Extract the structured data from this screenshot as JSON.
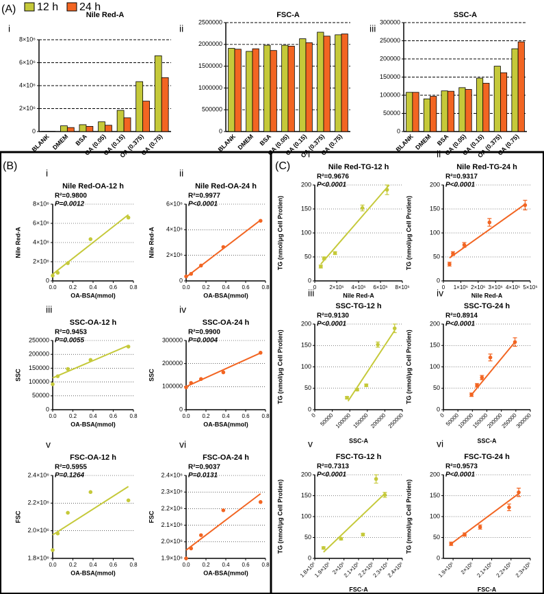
{
  "sections": [
    "(A)",
    "(B)",
    "(C)"
  ],
  "chart_data": [
    {
      "type": "bar",
      "panel": "i",
      "title": "Nile Red-A",
      "categories": [
        "BLANK",
        "DMEM",
        "BSA",
        "OA (0.05)",
        "OA (0.15)",
        "OA (0.375)",
        "OA (0.75)"
      ],
      "series": [
        {
          "name": "12 h",
          "color": "#c5c93a",
          "values": [
            20000,
            500000,
            600000,
            850000,
            1850000,
            4350000,
            6600000
          ]
        },
        {
          "name": "24 h",
          "color": "#f26522",
          "values": [
            20000,
            350000,
            450000,
            550000,
            1200000,
            2650000,
            4700000
          ]
        }
      ],
      "ylim": [
        0,
        8000000
      ],
      "yticks": [
        0,
        {
          "value": 2000000,
          "label": "2×10⁶"
        },
        {
          "value": 4000000,
          "label": "4×10⁶"
        },
        {
          "value": 6000000,
          "label": "6×10⁶"
        },
        {
          "value": 8000000,
          "label": "8×10⁶"
        }
      ],
      "grid": true
    },
    {
      "type": "bar",
      "panel": "ii",
      "title": "FSC-A",
      "categories": [
        "BLANK",
        "DMEM",
        "BSA",
        "OA (0.05)",
        "OA (0.15)",
        "OA (0.375)",
        "OA (0.75)"
      ],
      "series": [
        {
          "name": "12 h",
          "color": "#c5c93a",
          "values": [
            1910000,
            1840000,
            1980000,
            1980000,
            2130000,
            2280000,
            2220000
          ]
        },
        {
          "name": "24 h",
          "color": "#f26522",
          "values": [
            1890000,
            1900000,
            1860000,
            1960000,
            2040000,
            2190000,
            2240000
          ]
        }
      ],
      "ylim": [
        0,
        2500000
      ],
      "yticks": [
        0,
        500000,
        1000000,
        1500000,
        2000000,
        2500000
      ],
      "grid": true
    },
    {
      "type": "bar",
      "panel": "iii",
      "title": "SSC-A",
      "categories": [
        "BLANK",
        "DMEM",
        "BSA",
        "OA (0.05)",
        "OA (0.15)",
        "OA (0.375)",
        "OA (0.75)"
      ],
      "series": [
        {
          "name": "12 h",
          "color": "#c5c93a",
          "values": [
            108000,
            90000,
            112000,
            121000,
            147000,
            180000,
            228000
          ]
        },
        {
          "name": "24 h",
          "color": "#f26522",
          "values": [
            108000,
            97000,
            111000,
            116000,
            133000,
            162000,
            247000
          ]
        }
      ],
      "ylim": [
        0,
        300000
      ],
      "yticks": [
        0,
        50000,
        100000,
        150000,
        200000,
        250000,
        300000
      ],
      "grid": true
    },
    {
      "type": "scatter",
      "panel": "i",
      "title": "Nile Red-OA-12 h",
      "color": "#c5c93a",
      "annotations": [
        "R²=0.9800",
        "P=0.0012"
      ],
      "xlabel": "OA-BSA(mmol)",
      "ylabel": "Nile Red-A",
      "x": [
        0,
        0.05,
        0.15,
        0.375,
        0.75
      ],
      "y": [
        550000,
        850000,
        1850000,
        4350000,
        6600000
      ],
      "fit": {
        "x": [
          0,
          0.75
        ],
        "y": [
          700000,
          6900000
        ]
      },
      "xlim": [
        0,
        0.8
      ],
      "xticks": [
        {
          "value": 0,
          "label": "0.0"
        },
        0.2,
        0.4,
        0.6,
        0.8
      ],
      "ylim": [
        0,
        8000000
      ],
      "yticks": [
        0,
        {
          "value": 2000000,
          "label": "2×10⁶"
        },
        {
          "value": 4000000,
          "label": "4×10⁶"
        },
        {
          "value": 6000000,
          "label": "6×10⁶"
        },
        {
          "value": 8000000,
          "label": "8×10⁶"
        }
      ],
      "grid": true
    },
    {
      "type": "scatter",
      "panel": "ii",
      "title": "Nile Red-OA-24 h",
      "color": "#f26522",
      "annotations": [
        "R²=0.9977",
        "P<0.0001"
      ],
      "xlabel": "OA-BSA(mmol)",
      "ylabel": "Nile Red-A",
      "x": [
        0,
        0.05,
        0.15,
        0.375,
        0.75
      ],
      "y": [
        350000,
        550000,
        1200000,
        2650000,
        4700000
      ],
      "fit": {
        "x": [
          0,
          0.75
        ],
        "y": [
          300000,
          4750000
        ]
      },
      "xlim": [
        0,
        0.8
      ],
      "xticks": [
        {
          "value": 0,
          "label": "0.0"
        },
        0.2,
        0.4,
        0.6,
        0.8
      ],
      "ylim": [
        0,
        6000000
      ],
      "yticks": [
        0,
        {
          "value": 2000000,
          "label": "2×10⁶"
        },
        {
          "value": 4000000,
          "label": "4×10⁶"
        },
        {
          "value": 6000000,
          "label": "6×10⁶"
        }
      ],
      "grid": true
    },
    {
      "type": "scatter",
      "panel": "iii",
      "title": "SSC-OA-12 h",
      "color": "#c5c93a",
      "annotations": [
        "R²=0.9453",
        "P=0.0055"
      ],
      "xlabel": "OA-BSA(mmol)",
      "ylabel": "SSC",
      "x": [
        0,
        0.05,
        0.15,
        0.375,
        0.75
      ],
      "y": [
        92000,
        121000,
        147000,
        180000,
        228000
      ],
      "fit": {
        "x": [
          0,
          0.75
        ],
        "y": [
          115000,
          232000
        ]
      },
      "xlim": [
        0,
        0.8
      ],
      "xticks": [
        {
          "value": 0,
          "label": "0.0"
        },
        0.2,
        0.4,
        0.6,
        0.8
      ],
      "ylim": [
        0,
        250000
      ],
      "yticks": [
        0,
        50000,
        100000,
        150000,
        200000,
        250000
      ],
      "grid": true
    },
    {
      "type": "scatter",
      "panel": "iv",
      "title": "SSC-OA-24 h",
      "color": "#f26522",
      "annotations": [
        "R²=0.9900",
        "P=0.0004"
      ],
      "xlabel": "OA-BSA(mmol)",
      "ylabel": "SSC",
      "x": [
        0,
        0.05,
        0.15,
        0.375,
        0.75
      ],
      "y": [
        97000,
        116000,
        133000,
        162000,
        247000
      ],
      "fit": {
        "x": [
          0,
          0.75
        ],
        "y": [
          100000,
          246000
        ]
      },
      "xlim": [
        0,
        0.8
      ],
      "xticks": [
        {
          "value": 0,
          "label": "0.0"
        },
        0.2,
        0.4,
        0.6,
        0.8
      ],
      "ylim": [
        0,
        300000
      ],
      "yticks": [
        0,
        100000,
        200000,
        300000
      ],
      "grid": true
    },
    {
      "type": "scatter",
      "panel": "v",
      "title": "FSC-OA-12 h",
      "color": "#c5c93a",
      "annotations": [
        "R²=0.5955",
        "P=0.1264"
      ],
      "xlabel": "OA-BSA(mmol)",
      "ylabel": "FSC",
      "x": [
        0,
        0.05,
        0.15,
        0.375,
        0.75
      ],
      "y": [
        1860000,
        1980000,
        2130000,
        2280000,
        2220000
      ],
      "fit": {
        "x": [
          0,
          0.75
        ],
        "y": [
          1970000,
          2320000
        ]
      },
      "xlim": [
        0,
        0.8
      ],
      "xticks": [
        {
          "value": 0,
          "label": "0.0"
        },
        0.2,
        0.4,
        0.6,
        0.8
      ],
      "ylim": [
        1800000,
        2400000
      ],
      "yticks": [
        {
          "value": 1800000,
          "label": "1.8×10⁶"
        },
        {
          "value": 2000000,
          "label": "2.0×10⁶"
        },
        {
          "value": 2200000,
          "label": "2.2×10⁶"
        },
        {
          "value": 2400000,
          "label": "2.4×10⁶"
        }
      ],
      "grid": true
    },
    {
      "type": "scatter",
      "panel": "vi",
      "title": "FSC-OA-24 h",
      "color": "#f26522",
      "annotations": [
        "R²=0.9037",
        "P=0.0131"
      ],
      "xlabel": "OA-BSA(mmol)",
      "ylabel": "FSC",
      "x": [
        0,
        0.05,
        0.15,
        0.375,
        0.75
      ],
      "y": [
        1900000,
        1960000,
        2040000,
        2190000,
        2240000
      ],
      "fit": {
        "x": [
          0,
          0.75
        ],
        "y": [
          1950000,
          2290000
        ]
      },
      "xlim": [
        0,
        0.8
      ],
      "xticks": [
        {
          "value": 0,
          "label": "0.0"
        },
        0.2,
        0.4,
        0.6,
        0.8
      ],
      "ylim": [
        1900000,
        2400000
      ],
      "yticks": [
        {
          "value": 1900000,
          "label": "1.9×10⁶"
        },
        {
          "value": 2000000,
          "label": "2.0×10⁶"
        },
        {
          "value": 2100000,
          "label": "2.1×10⁶"
        },
        {
          "value": 2200000,
          "label": "2.2×10⁶"
        },
        {
          "value": 2300000,
          "label": "2.3×10⁶"
        },
        {
          "value": 2400000,
          "label": "2.4×10⁶"
        }
      ],
      "grid": true
    },
    {
      "type": "scatter",
      "panel": "i",
      "title": "Nile Red-TG-12 h",
      "color": "#c5c93a",
      "annotations": [
        "R²=0.9676",
        "P<0.0001"
      ],
      "xlabel": "Nile Red-A",
      "ylabel": "TG (nmol/μg Cell Protien)",
      "x": [
        550000,
        850000,
        1850000,
        4350000,
        6600000
      ],
      "y": [
        30,
        47,
        58,
        152,
        190
      ],
      "errors": [
        3,
        3,
        3,
        6,
        10
      ],
      "fit": {
        "x": [
          550000,
          6800000
        ],
        "y": [
          35,
          200
        ]
      },
      "xlim": [
        0,
        8000000
      ],
      "xticks": [
        0,
        {
          "value": 2000000,
          "label": "2×10⁶"
        },
        {
          "value": 4000000,
          "label": "4×10⁶"
        },
        {
          "value": 6000000,
          "label": "6×10⁶"
        },
        {
          "value": 8000000,
          "label": "8×10⁶"
        }
      ],
      "ylim": [
        0,
        200
      ],
      "yticks": [
        0,
        50,
        100,
        150,
        200
      ],
      "grid": true
    },
    {
      "type": "scatter",
      "panel": "ii",
      "title": "Nile Red-TG-24 h",
      "color": "#f26522",
      "annotations": [
        "R²=0.9317",
        "P<0.0001"
      ],
      "xlabel": "Nile Red-A",
      "ylabel": "TG (nmol/μg Cell Protien)",
      "x": [
        350000,
        550000,
        1200000,
        2650000,
        4700000
      ],
      "y": [
        35,
        57,
        75,
        122,
        158
      ],
      "errors": [
        4,
        4,
        5,
        8,
        10
      ],
      "fit": {
        "x": [
          350000,
          4700000
        ],
        "y": [
          48,
          160
        ]
      },
      "xlim": [
        0,
        5000000
      ],
      "xticks": [
        0,
        {
          "value": 1000000,
          "label": "1×10⁶"
        },
        {
          "value": 2000000,
          "label": "2×10⁶"
        },
        {
          "value": 3000000,
          "label": "3×10⁶"
        },
        {
          "value": 4000000,
          "label": "4×10⁶"
        },
        {
          "value": 5000000,
          "label": "5×10⁶"
        }
      ],
      "ylim": [
        0,
        200
      ],
      "yticks": [
        0,
        50,
        100,
        150,
        200
      ],
      "grid": true
    },
    {
      "type": "scatter",
      "panel": "iii",
      "title": "SSC-TG-12 h",
      "color": "#c5c93a",
      "annotations": [
        "R²=0.9130",
        "P<0.0001"
      ],
      "xlabel": "SSC-A",
      "ylabel": "TG (nmol/μg Cell Protien)",
      "x": [
        92000,
        121000,
        147000,
        180000,
        228000
      ],
      "y": [
        28,
        47,
        57,
        152,
        190
      ],
      "errors": [
        3,
        3,
        3,
        6,
        10
      ],
      "fit": {
        "x": [
          95000,
          228000
        ],
        "y": [
          20,
          185
        ]
      },
      "xlim": [
        0,
        250000
      ],
      "xticks": [
        0,
        50000,
        100000,
        150000,
        200000,
        250000
      ],
      "ylim": [
        0,
        200
      ],
      "yticks": [
        0,
        50,
        100,
        150,
        200
      ],
      "grid": true
    },
    {
      "type": "scatter",
      "panel": "iv",
      "title": "SSC-TG-24 h",
      "color": "#f26522",
      "annotations": [
        "R²=0.8914",
        "P<0.0001"
      ],
      "xlabel": "SSC-A",
      "ylabel": "TG (nmol/μg Cell Protien)",
      "x": [
        97000,
        116000,
        133000,
        162000,
        247000
      ],
      "y": [
        35,
        57,
        75,
        122,
        158
      ],
      "errors": [
        4,
        4,
        5,
        8,
        10
      ],
      "fit": {
        "x": [
          97000,
          247000
        ],
        "y": [
          35,
          158
        ]
      },
      "xlim": [
        0,
        300000
      ],
      "xticks": [
        0,
        50000,
        100000,
        150000,
        200000,
        250000,
        300000
      ],
      "ylim": [
        0,
        200
      ],
      "yticks": [
        0,
        50,
        100,
        150,
        200
      ],
      "grid": true
    },
    {
      "type": "scatter",
      "panel": "v",
      "title": "FSC-TG-12 h",
      "color": "#c5c93a",
      "annotations": [
        "R²=0.7313",
        "P<0.0001"
      ],
      "xlabel": "FSC-A",
      "ylabel": "TG (nmol/μg Cell Protien)",
      "x": [
        1860000,
        1980000,
        2130000,
        2220000,
        2280000
      ],
      "y": [
        25,
        47,
        57,
        190,
        152
      ],
      "errors": [
        3,
        3,
        3,
        10,
        6
      ],
      "fit": {
        "x": [
          1860000,
          2280000
        ],
        "y": [
          15,
          155
        ]
      },
      "xlim": [
        1800000,
        2400000
      ],
      "xticks": [
        {
          "value": 1800000,
          "label": "1.8×10⁶"
        },
        {
          "value": 1900000,
          "label": "1.9×10⁶"
        },
        {
          "value": 2000000,
          "label": "2×10⁶"
        },
        {
          "value": 2100000,
          "label": "2.1×10⁶"
        },
        {
          "value": 2200000,
          "label": "2.2×10⁶"
        },
        {
          "value": 2300000,
          "label": "2.3×10⁶"
        },
        {
          "value": 2400000,
          "label": "2.4×10⁶"
        }
      ],
      "ylim": [
        0,
        200
      ],
      "yticks": [
        0,
        50,
        100,
        150,
        200
      ],
      "grid": true
    },
    {
      "type": "scatter",
      "panel": "vi",
      "title": "FSC-TG-24 h",
      "color": "#f26522",
      "annotations": [
        "R²=0.9573",
        "P<0.0001"
      ],
      "xlabel": "FSC-A",
      "ylabel": "TG (nmol/μg Cell Protien)",
      "x": [
        1890000,
        1960000,
        2040000,
        2190000,
        2240000
      ],
      "y": [
        35,
        57,
        75,
        122,
        158
      ],
      "errors": [
        4,
        4,
        5,
        8,
        10
      ],
      "fit": {
        "x": [
          1890000,
          2240000
        ],
        "y": [
          35,
          155
        ]
      },
      "xlim": [
        1850000,
        2300000
      ],
      "xticks": [
        {
          "value": 1900000,
          "label": "1.9×10⁶"
        },
        {
          "value": 2000000,
          "label": "2×10⁶"
        },
        {
          "value": 2100000,
          "label": "2.1×10⁶"
        },
        {
          "value": 2200000,
          "label": "2.2×10⁶"
        },
        {
          "value": 2300000,
          "label": "2.3×10⁶"
        }
      ],
      "ylim": [
        0,
        200
      ],
      "yticks": [
        0,
        50,
        100,
        150,
        200
      ],
      "grid": true
    }
  ]
}
